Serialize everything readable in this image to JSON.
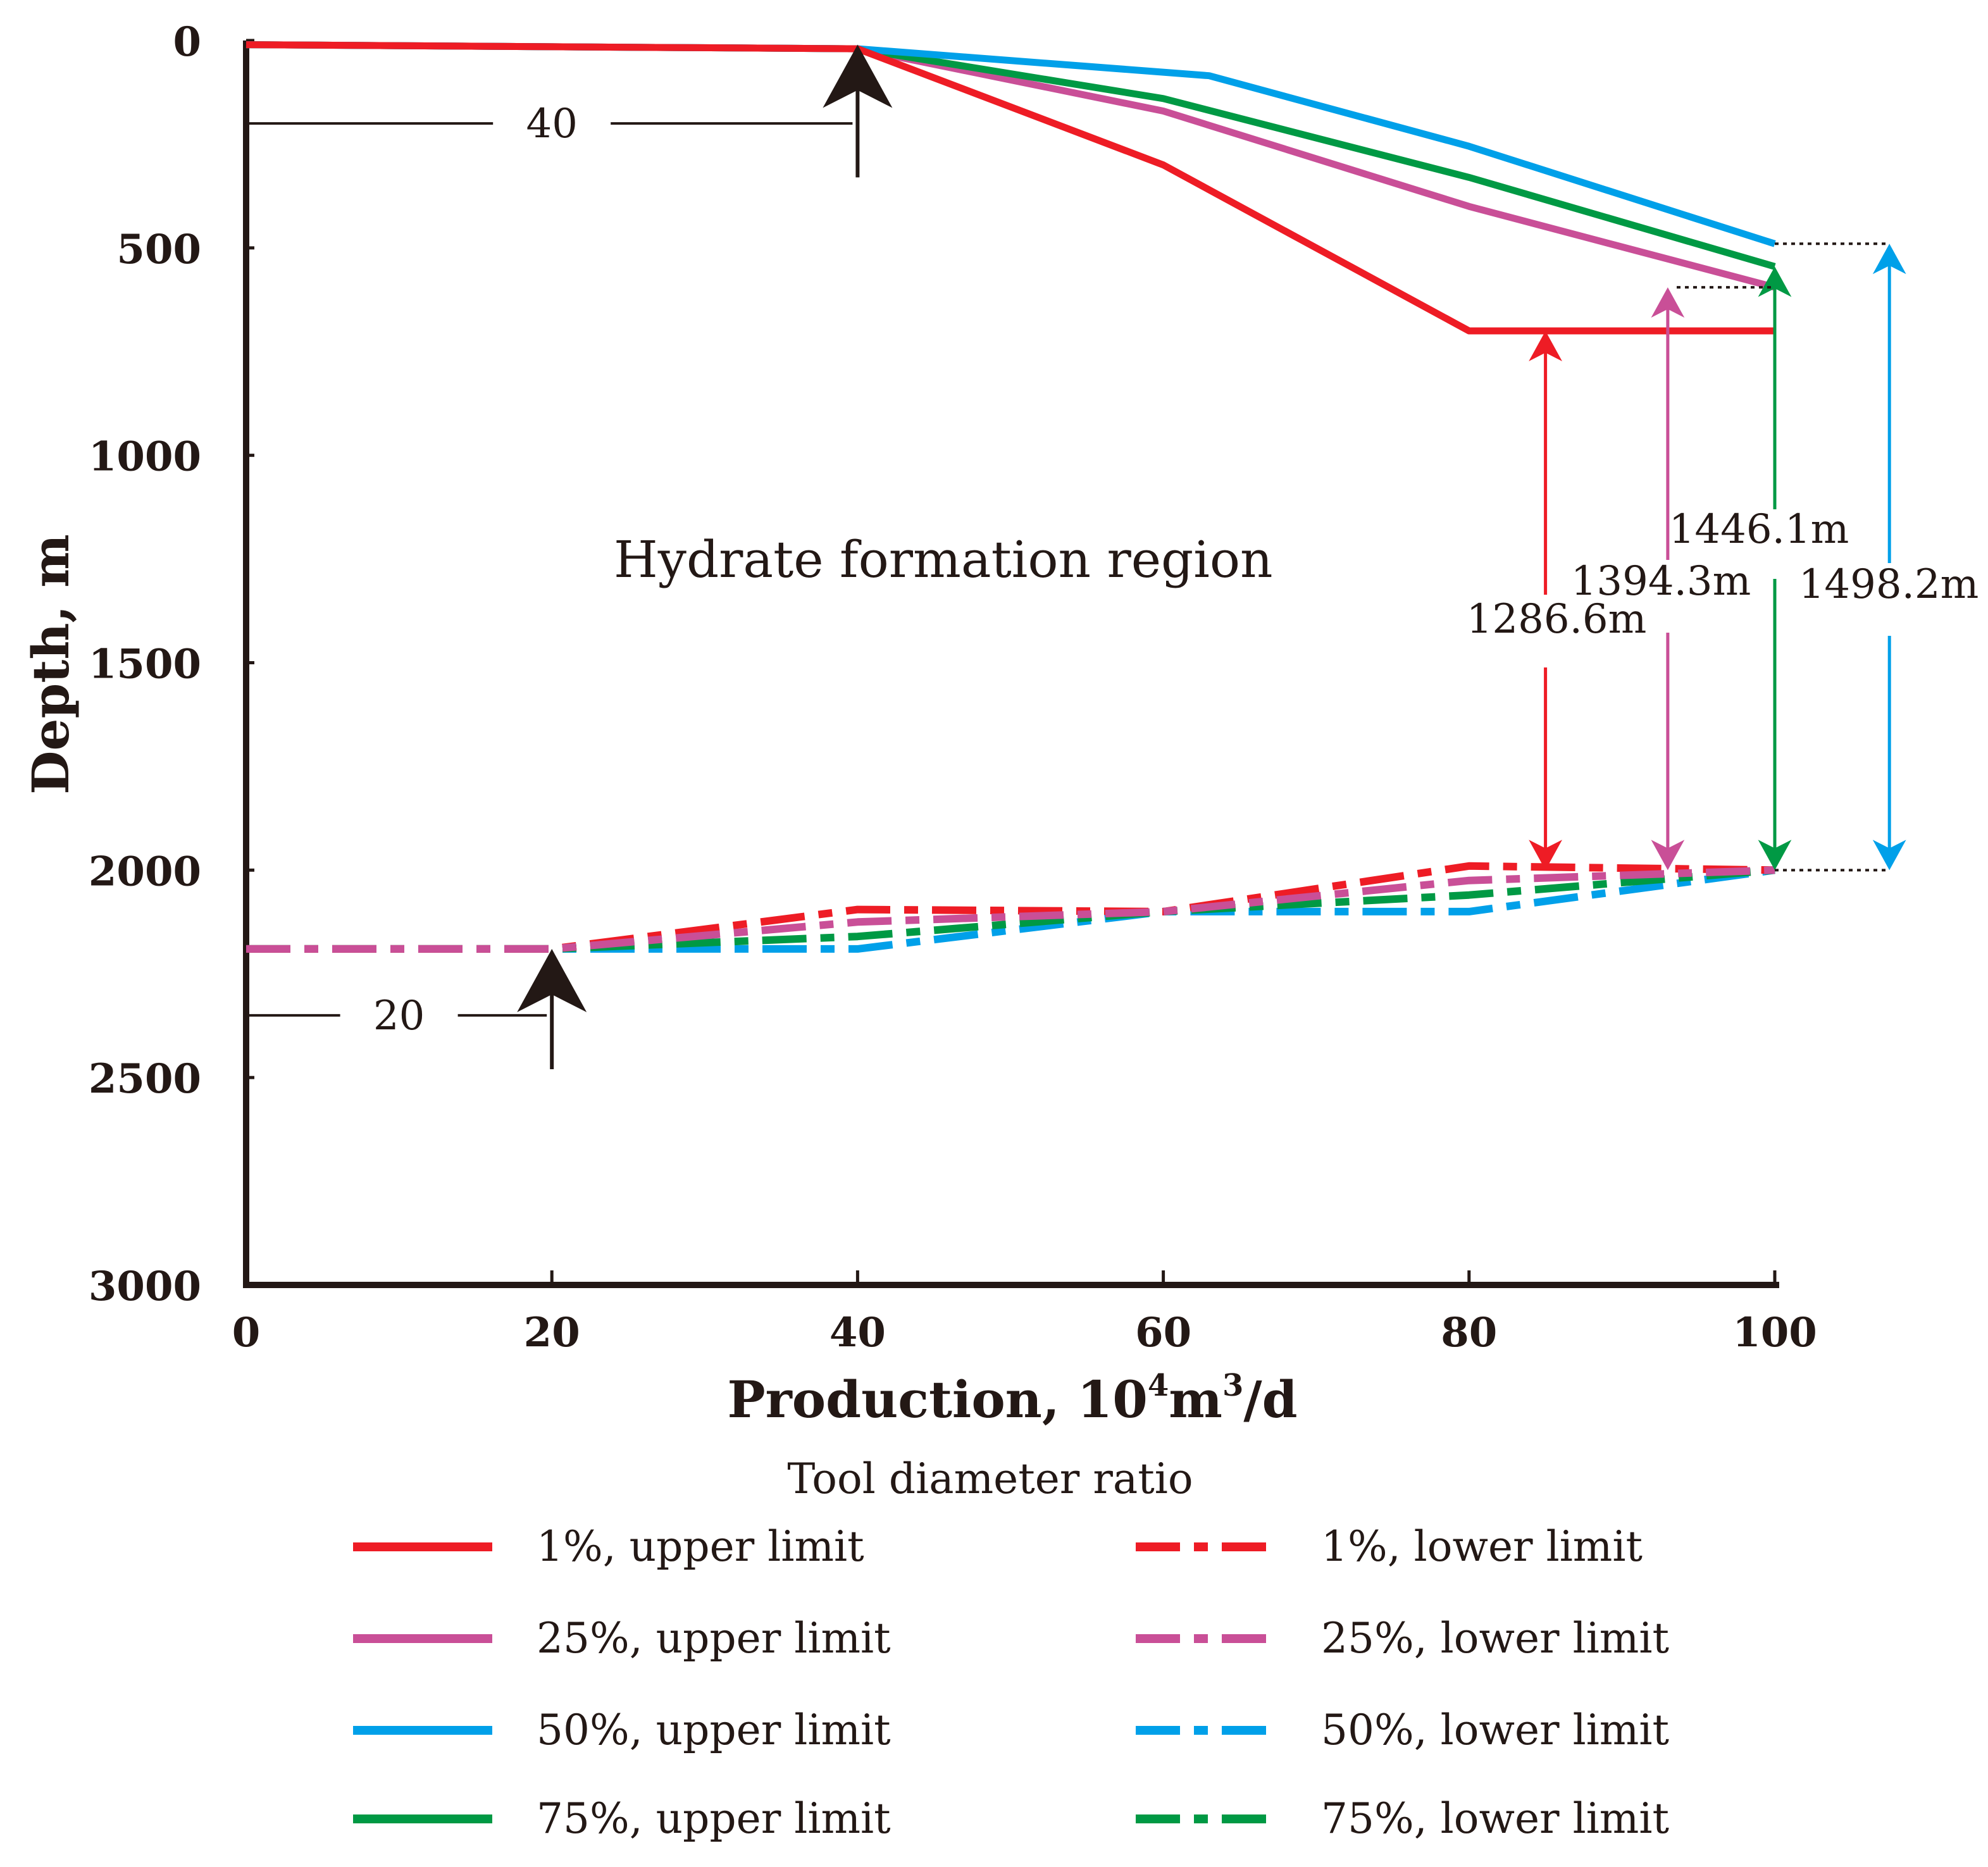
{
  "chart_data": {
    "type": "line",
    "xlabel": "Production, 10",
    "xlabel_sup1": "4",
    "xlabel_mid": "m",
    "xlabel_sup2": "3",
    "xlabel_end": "/d",
    "ylabel": "Depth, m",
    "xlim": [
      0,
      100
    ],
    "ylim": [
      3000,
      0
    ],
    "y_inverted": true,
    "x_ticks": [
      "0",
      "20",
      "40",
      "60",
      "80",
      "100"
    ],
    "y_ticks": [
      "0",
      "500",
      "1000",
      "1500",
      "2000",
      "2500",
      "3000"
    ],
    "grid": false,
    "region_label": "Hydrate formation region",
    "legend_title": "Tool diameter ratio",
    "legend_position": "bottom",
    "colors": {
      "red": "#ee1c25",
      "magenta": "#c94f97",
      "blue": "#00a0e9",
      "green": "#009944",
      "axis": "#231815"
    },
    "series": [
      {
        "name": "1%, upper limit",
        "style": "solid",
        "color": "#ee1c25",
        "x": [
          0,
          40,
          60,
          80,
          100
        ],
        "y": [
          10,
          20,
          300,
          700,
          700
        ]
      },
      {
        "name": "25%, upper limit",
        "style": "solid",
        "color": "#c94f97",
        "x": [
          0,
          40,
          60,
          80,
          100
        ],
        "y": [
          10,
          20,
          170,
          400,
          595
        ]
      },
      {
        "name": "50%, upper limit",
        "style": "solid",
        "color": "#00a0e9",
        "x": [
          0,
          40,
          63,
          80,
          100
        ],
        "y": [
          10,
          20,
          85,
          255,
          490
        ]
      },
      {
        "name": "75%, upper limit",
        "style": "solid",
        "color": "#009944",
        "x": [
          0,
          40,
          60,
          80,
          100
        ],
        "y": [
          10,
          20,
          140,
          330,
          545
        ]
      },
      {
        "name": "1%, lower limit",
        "style": "dashdot",
        "color": "#ee1c25",
        "x": [
          0,
          20,
          40,
          60,
          80,
          100
        ],
        "y": [
          2190,
          2190,
          2095,
          2100,
          1990,
          2000
        ]
      },
      {
        "name": "25%, lower limit",
        "style": "dashdot",
        "color": "#c94f97",
        "x": [
          0,
          20,
          40,
          60,
          80,
          100
        ],
        "y": [
          2190,
          2190,
          2125,
          2100,
          2025,
          2000
        ]
      },
      {
        "name": "50%, lower limit",
        "style": "dashdot",
        "color": "#00a0e9",
        "x": [
          0,
          20,
          40,
          60,
          80,
          100
        ],
        "y": [
          2190,
          2190,
          2190,
          2100,
          2100,
          2000
        ]
      },
      {
        "name": "75%, lower limit",
        "style": "dashdot",
        "color": "#009944",
        "x": [
          0,
          20,
          40,
          60,
          80,
          100
        ],
        "y": [
          2190,
          2190,
          2160,
          2100,
          2060,
          2000
        ]
      }
    ],
    "annotations": [
      {
        "label": "40",
        "x": 40,
        "y_arrow_top": 10,
        "y_arrow_bottom": 330,
        "y_line": 200
      },
      {
        "label": "20",
        "x": 20,
        "y_arrow_top": 2190,
        "y_arrow_bottom": 2480,
        "y_line": 2350
      }
    ],
    "spans": [
      {
        "label": "1286.6m",
        "color": "#ee1c25",
        "x": 85,
        "y_top": 700,
        "y_bottom": 2000
      },
      {
        "label": "1394.3m",
        "color": "#c94f97",
        "x": 93,
        "y_top": 595,
        "y_bottom": 2000
      },
      {
        "label": "1446.1m",
        "color": "#009944",
        "x": 100,
        "y_top": 545,
        "y_bottom": 2000
      },
      {
        "label": "1498.2m",
        "color": "#00a0e9",
        "x": 107.5,
        "y_top": 490,
        "y_bottom": 2000
      }
    ]
  }
}
